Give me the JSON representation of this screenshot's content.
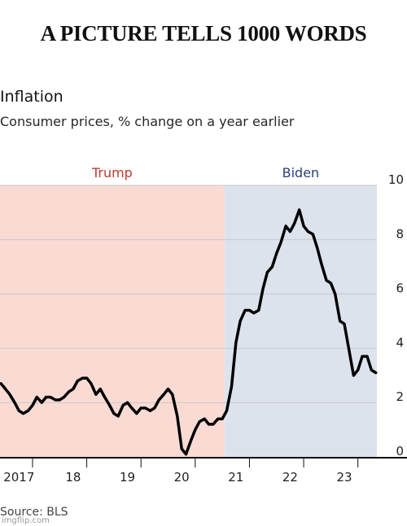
{
  "meme_title": "A PICTURE TELLS 1000 WORDS",
  "source": "Source: BLS",
  "watermark": "imgflip.com",
  "chart_data": {
    "type": "line",
    "title": "Inflation",
    "subtitle": "Consumer prices, % change on a year earlier",
    "xlabel": "",
    "ylabel": "",
    "x_tick_labels": [
      "2017",
      "18",
      "19",
      "20",
      "21",
      "22",
      "23"
    ],
    "x_tick_values": [
      2017,
      2018,
      2019,
      2020,
      2021,
      2022,
      2023
    ],
    "xlim": [
      2016.9,
      2023.85
    ],
    "y_ticks": [
      0,
      2,
      4,
      6,
      8,
      10
    ],
    "ylim": [
      0,
      10
    ],
    "grid": true,
    "periods": [
      {
        "label": "Trump",
        "start": 2016.9,
        "end": 2021.04,
        "color": "#fadbd4",
        "label_color": "#c0392b"
      },
      {
        "label": "Biden",
        "start": 2021.04,
        "end": 2023.85,
        "color": "#dde3ed",
        "label_color": "#2c3e70"
      }
    ],
    "line_color": "#000000",
    "series": [
      {
        "values": [
          [
            2016.92,
            2.7
          ],
          [
            2017.0,
            2.5
          ],
          [
            2017.08,
            2.3
          ],
          [
            2017.17,
            2.0
          ],
          [
            2017.25,
            1.7
          ],
          [
            2017.33,
            1.6
          ],
          [
            2017.42,
            1.7
          ],
          [
            2017.5,
            1.9
          ],
          [
            2017.58,
            2.2
          ],
          [
            2017.67,
            2.0
          ],
          [
            2017.75,
            2.2
          ],
          [
            2017.83,
            2.2
          ],
          [
            2017.92,
            2.1
          ],
          [
            2018.0,
            2.1
          ],
          [
            2018.08,
            2.2
          ],
          [
            2018.17,
            2.4
          ],
          [
            2018.25,
            2.5
          ],
          [
            2018.33,
            2.8
          ],
          [
            2018.42,
            2.9
          ],
          [
            2018.5,
            2.9
          ],
          [
            2018.58,
            2.7
          ],
          [
            2018.67,
            2.3
          ],
          [
            2018.75,
            2.5
          ],
          [
            2018.83,
            2.2
          ],
          [
            2018.92,
            1.9
          ],
          [
            2019.0,
            1.6
          ],
          [
            2019.08,
            1.5
          ],
          [
            2019.17,
            1.9
          ],
          [
            2019.25,
            2.0
          ],
          [
            2019.33,
            1.8
          ],
          [
            2019.42,
            1.6
          ],
          [
            2019.5,
            1.8
          ],
          [
            2019.58,
            1.8
          ],
          [
            2019.67,
            1.7
          ],
          [
            2019.75,
            1.8
          ],
          [
            2019.83,
            2.1
          ],
          [
            2019.92,
            2.3
          ],
          [
            2020.0,
            2.5
          ],
          [
            2020.08,
            2.3
          ],
          [
            2020.17,
            1.5
          ],
          [
            2020.25,
            0.3
          ],
          [
            2020.33,
            0.1
          ],
          [
            2020.42,
            0.6
          ],
          [
            2020.5,
            1.0
          ],
          [
            2020.58,
            1.3
          ],
          [
            2020.67,
            1.4
          ],
          [
            2020.75,
            1.2
          ],
          [
            2020.83,
            1.2
          ],
          [
            2020.92,
            1.4
          ],
          [
            2021.0,
            1.4
          ],
          [
            2021.08,
            1.7
          ],
          [
            2021.17,
            2.6
          ],
          [
            2021.25,
            4.2
          ],
          [
            2021.33,
            5.0
          ],
          [
            2021.42,
            5.4
          ],
          [
            2021.5,
            5.4
          ],
          [
            2021.58,
            5.3
          ],
          [
            2021.67,
            5.4
          ],
          [
            2021.75,
            6.2
          ],
          [
            2021.83,
            6.8
          ],
          [
            2021.92,
            7.0
          ],
          [
            2022.0,
            7.5
          ],
          [
            2022.08,
            7.9
          ],
          [
            2022.17,
            8.5
          ],
          [
            2022.25,
            8.3
          ],
          [
            2022.33,
            8.6
          ],
          [
            2022.42,
            9.1
          ],
          [
            2022.5,
            8.5
          ],
          [
            2022.58,
            8.3
          ],
          [
            2022.67,
            8.2
          ],
          [
            2022.75,
            7.7
          ],
          [
            2022.83,
            7.1
          ],
          [
            2022.92,
            6.5
          ],
          [
            2023.0,
            6.4
          ],
          [
            2023.08,
            6.0
          ],
          [
            2023.17,
            5.0
          ],
          [
            2023.25,
            4.9
          ],
          [
            2023.33,
            4.0
          ],
          [
            2023.42,
            3.0
          ],
          [
            2023.5,
            3.2
          ],
          [
            2023.58,
            3.7
          ],
          [
            2023.67,
            3.7
          ],
          [
            2023.75,
            3.2
          ],
          [
            2023.83,
            3.1
          ]
        ]
      }
    ]
  }
}
